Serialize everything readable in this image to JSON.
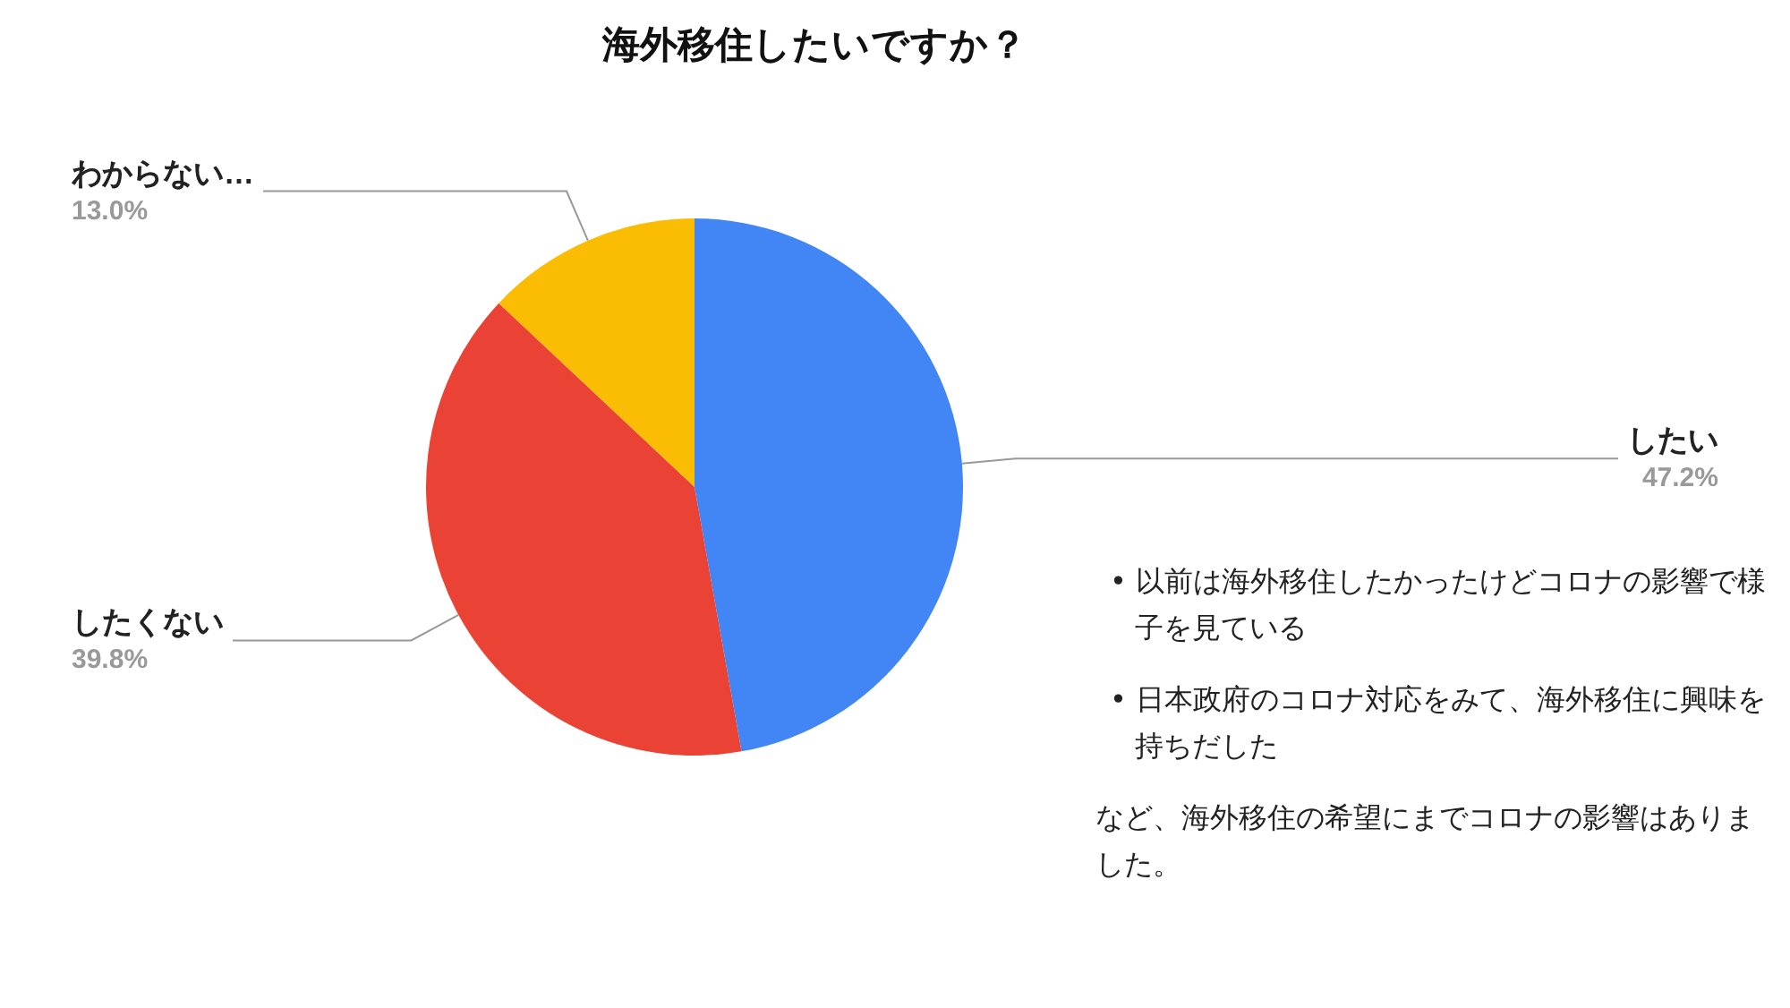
{
  "chart_data": {
    "type": "pie",
    "title": "海外移住したいですか？",
    "categories": [
      "したい",
      "したくない",
      "わからない…"
    ],
    "values": [
      47.2,
      39.8,
      13.0
    ],
    "colors": [
      "#4285f4",
      "#ea4335",
      "#fbbc04"
    ],
    "value_labels": [
      "47.2%",
      "39.8%",
      "13.0%"
    ],
    "legend": false,
    "annotations": [
      "• 以前は海外移住したかったけどコロナの影響で様子を見ている",
      "• 日本政府のコロナ対応をみて、海外移住に興味を持ちだした",
      "など、海外移住の希望にまでコロナの影響はありました。"
    ]
  }
}
